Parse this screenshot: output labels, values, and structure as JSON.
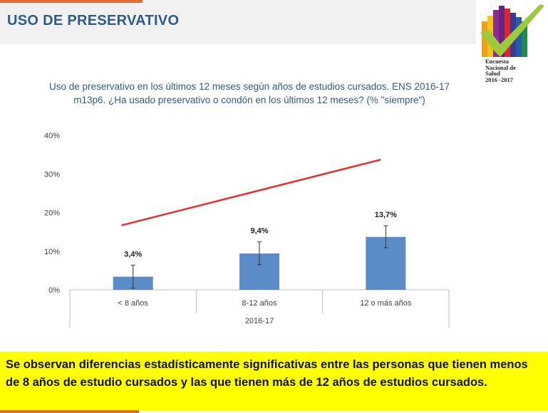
{
  "header": {
    "title": "USO DE PRESERVATIVO"
  },
  "logo": {
    "lines": [
      "Encuesta",
      "Nacional de",
      "Salud",
      "2016 -2017"
    ]
  },
  "chart_title": {
    "line1": "Uso de preservativo en los últimos 12 meses según años de estudios cursados. ENS 2016-17",
    "line2": "m13p6. ¿Ha usado preservativo o condón en los últimos 12 meses? (% \"siempre\")"
  },
  "chart_data": {
    "type": "bar",
    "categories": [
      "< 8 años",
      "8-12 años",
      "12 o más años"
    ],
    "values": [
      3.4,
      9.4,
      13.7
    ],
    "data_labels": [
      "3,4%",
      "9,4%",
      "13,7%"
    ],
    "error_bars": [
      [
        0.4,
        6.4
      ],
      [
        6.5,
        12.4
      ],
      [
        10.9,
        16.6
      ]
    ],
    "ylim": [
      0,
      40
    ],
    "yticks": [
      0,
      10,
      20,
      30,
      40
    ],
    "ytick_labels": [
      "0%",
      "10%",
      "20%",
      "30%",
      "40%"
    ],
    "xlabel": "2016-17",
    "bar_color": "#5b8cc8",
    "trend_line": {
      "color": "#ee2a2a",
      "start_y": 16.7,
      "end_y": 33.7
    }
  },
  "note": {
    "text": "Se observan diferencias estadísticamente significativas entre las personas que tienen menos de 8 años de estudio cursados y las que tienen más de 12 años de estudios cursados."
  }
}
